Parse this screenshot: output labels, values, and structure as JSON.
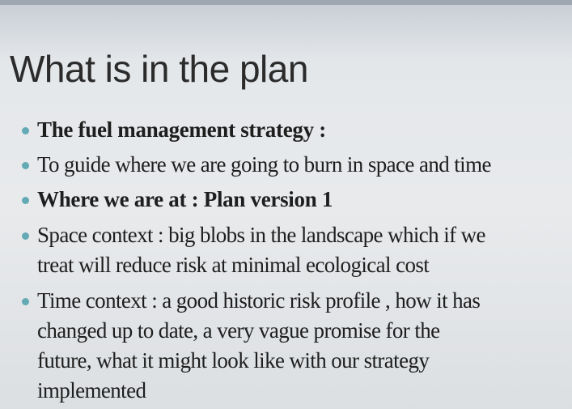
{
  "title": "What is in the plan",
  "bullets": [
    [
      "The fuel management strategy :"
    ],
    [
      "To guide where we are going to burn in space and time"
    ],
    [
      "Where we are at  : Plan version 1"
    ],
    [
      "Space context : big blobs in the landscape which if we",
      "treat will reduce risk at minimal ecological cost"
    ],
    [
      "Time  context : a good historic risk profile , how it has",
      "changed up to date, a very vague promise for the",
      "future, what it might look like with our strategy",
      "implemented"
    ]
  ]
}
